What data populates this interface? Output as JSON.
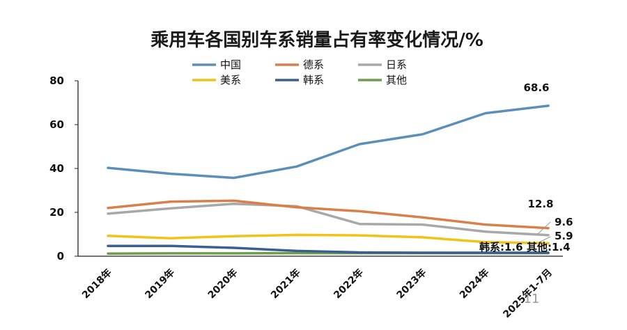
{
  "chart_data": {
    "type": "line",
    "title": "乘用车各国别车系销量占有率变化情况/%",
    "categories": [
      "2018年",
      "2019年",
      "2020年",
      "2021年",
      "2022年",
      "2023年",
      "2024年",
      "2025年1-7月"
    ],
    "ylim": [
      0,
      80
    ],
    "yticks": [
      0,
      20,
      40,
      60,
      80
    ],
    "grid": false,
    "legend_position": "top",
    "series": [
      {
        "name": "中国",
        "color": "#5b8fb9",
        "values": [
          40.3,
          37.6,
          35.7,
          40.9,
          51.1,
          55.6,
          65.2,
          68.6
        ],
        "end_label": "68.6"
      },
      {
        "name": "德系",
        "color": "#d9804a",
        "values": [
          22.0,
          24.9,
          25.3,
          22.3,
          20.5,
          17.7,
          14.4,
          12.8
        ],
        "end_label": "12.8"
      },
      {
        "name": "日系",
        "color": "#a8a8a8",
        "values": [
          19.4,
          21.8,
          23.9,
          22.8,
          14.7,
          14.4,
          11.2,
          9.6
        ],
        "end_label": "9.6"
      },
      {
        "name": "美系",
        "color": "#f2c316",
        "values": [
          9.3,
          8.2,
          9.1,
          9.7,
          9.5,
          8.6,
          6.4,
          5.9
        ],
        "end_label": "5.9"
      },
      {
        "name": "韩系",
        "color": "#3a5f91",
        "values": [
          4.7,
          4.7,
          3.8,
          2.4,
          1.7,
          1.6,
          1.6,
          1.6
        ],
        "end_label": "韩系:1.6"
      },
      {
        "name": "其他",
        "color": "#6f9e4c",
        "values": [
          1.2,
          1.3,
          1.3,
          1.4,
          1.4,
          1.4,
          1.4,
          1.4
        ],
        "end_label": "其他:1.4"
      }
    ]
  },
  "page_number": "11"
}
